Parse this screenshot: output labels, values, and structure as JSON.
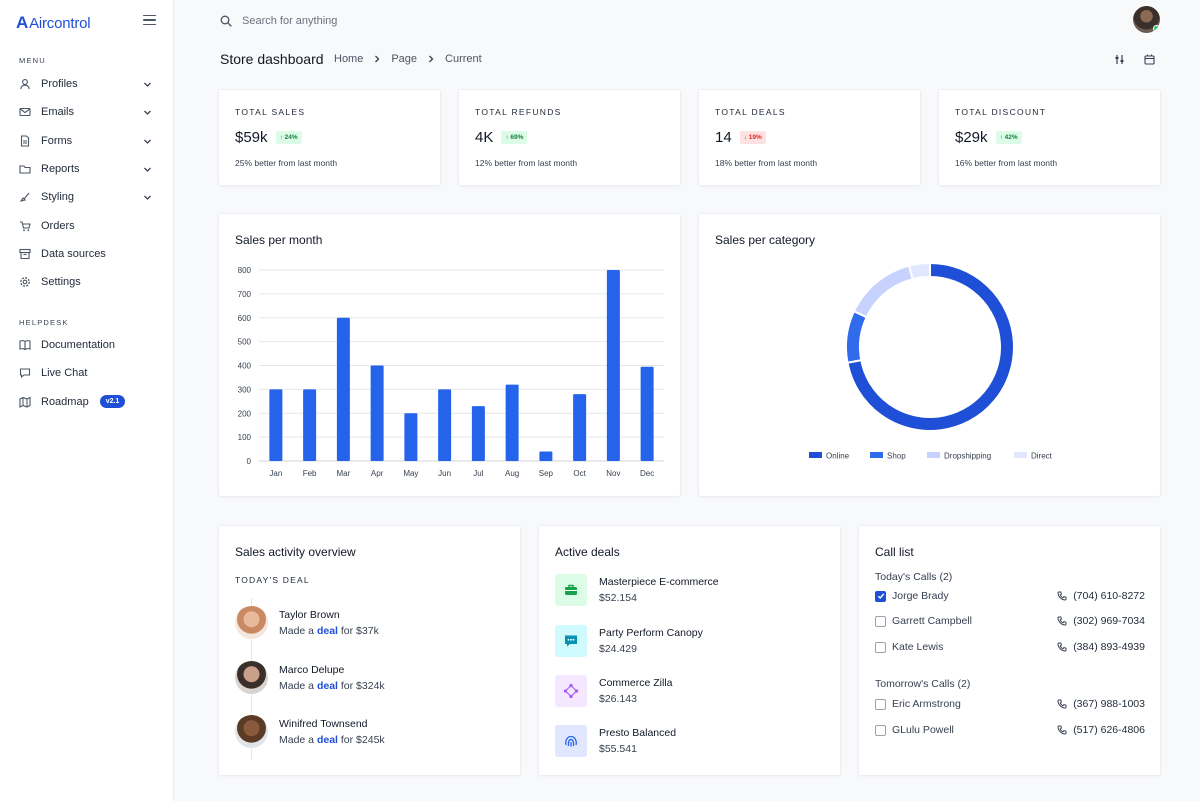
{
  "app": {
    "name": "Aircontrol",
    "brand_color": "#1e4fd6"
  },
  "sidebar": {
    "menu_title": "MENU",
    "menu": [
      {
        "label": "Profiles",
        "icon": "user-icon",
        "chevron": true
      },
      {
        "label": "Emails",
        "icon": "mail-icon",
        "chevron": true
      },
      {
        "label": "Forms",
        "icon": "file-icon",
        "chevron": true
      },
      {
        "label": "Reports",
        "icon": "folder-icon",
        "chevron": true
      },
      {
        "label": "Styling",
        "icon": "brush-icon",
        "chevron": true
      },
      {
        "label": "Orders",
        "icon": "cart-icon",
        "chevron": false
      },
      {
        "label": "Data sources",
        "icon": "archive-icon",
        "chevron": false
      },
      {
        "label": "Settings",
        "icon": "gear-icon",
        "chevron": false
      }
    ],
    "helpdesk_title": "HELPDESK",
    "helpdesk": [
      {
        "label": "Documentation",
        "icon": "book-icon"
      },
      {
        "label": "Live Chat",
        "icon": "chat-icon"
      },
      {
        "label": "Roadmap",
        "icon": "map-icon",
        "badge": "v2.1"
      }
    ]
  },
  "header": {
    "search_placeholder": "Search for anything",
    "page_title": "Store dashboard",
    "breadcrumb": [
      "Home",
      "Page",
      "Current"
    ]
  },
  "stats": [
    {
      "label": "TOTAL SALES",
      "value": "$59k",
      "change": "24%",
      "direction": "up",
      "note": "25% better from last month"
    },
    {
      "label": "TOTAL REFUNDS",
      "value": "4K",
      "change": "69%",
      "direction": "up",
      "note": "12% better from last month"
    },
    {
      "label": "TOTAL DEALS",
      "value": "14",
      "change": "19%",
      "direction": "down",
      "note": "18% better from last month"
    },
    {
      "label": "TOTAL DISCOUNT",
      "value": "$29k",
      "change": "42%",
      "direction": "up",
      "note": "16% better from last month"
    }
  ],
  "sales_month_title": "Sales per month",
  "sales_category_title": "Sales per category",
  "chart_data": [
    {
      "type": "bar",
      "title": "Sales per month",
      "categories": [
        "Jan",
        "Feb",
        "Mar",
        "Apr",
        "May",
        "Jun",
        "Jul",
        "Aug",
        "Sep",
        "Oct",
        "Nov",
        "Dec"
      ],
      "values": [
        300,
        300,
        600,
        400,
        200,
        300,
        230,
        320,
        40,
        280,
        800,
        395
      ],
      "ylim": [
        0,
        800
      ],
      "yticks": [
        0,
        100,
        200,
        300,
        400,
        500,
        600,
        700,
        800
      ],
      "grid": true,
      "color": "#2563eb"
    },
    {
      "type": "pie",
      "title": "Sales per category",
      "donut": true,
      "labels": [
        "Online",
        "Shop",
        "Dropshipping",
        "Direct"
      ],
      "values": [
        72,
        10,
        14,
        4
      ],
      "colors": [
        "#1e4fd6",
        "#2f6bea",
        "#c7d2fe",
        "#e0e7ff"
      ],
      "legend": "bottom"
    }
  ],
  "activity": {
    "title": "Sales activity overview",
    "subtitle": "TODAY'S DEAL",
    "items": [
      {
        "name": "Taylor Brown",
        "prefix": "Made a",
        "link": "deal",
        "suffix": "for $37k"
      },
      {
        "name": "Marco Delupe",
        "prefix": "Made a",
        "link": "deal",
        "suffix": "for $324k"
      },
      {
        "name": "Winifred Townsend",
        "prefix": "Made a",
        "link": "deal",
        "suffix": "for $245k"
      }
    ]
  },
  "deals": {
    "title": "Active deals",
    "items": [
      {
        "name": "Masterpiece E-commerce",
        "value": "$52.154",
        "icon": "briefcase-icon",
        "bg": "#dcfce7",
        "fg": "#16a34a"
      },
      {
        "name": "Party Perform Canopy",
        "value": "$24.429",
        "icon": "chat-bubble-icon",
        "bg": "#cffafe",
        "fg": "#0891b2"
      },
      {
        "name": "Commerce Zilla",
        "value": "$26.143",
        "icon": "nodes-icon",
        "bg": "#f3e8ff",
        "fg": "#a855f7"
      },
      {
        "name": "Presto Balanced",
        "value": "$55.541",
        "icon": "fingerprint-icon",
        "bg": "#e0e7ff",
        "fg": "#2563eb"
      }
    ]
  },
  "calls": {
    "title": "Call list",
    "today_label": "Today's Calls (2)",
    "today": [
      {
        "name": "Jorge Brady",
        "phone": "(704) 610-8272",
        "checked": true
      },
      {
        "name": "Garrett Campbell",
        "phone": "(302) 969-7034",
        "checked": false
      },
      {
        "name": "Kate Lewis",
        "phone": "(384) 893-4939",
        "checked": false
      }
    ],
    "tomorrow_label": "Tomorrow's Calls (2)",
    "tomorrow": [
      {
        "name": "Eric Armstrong",
        "phone": "(367) 988-1003",
        "checked": false
      },
      {
        "name": "GLulu Powell",
        "phone": "(517) 626-4806",
        "checked": false
      }
    ]
  }
}
